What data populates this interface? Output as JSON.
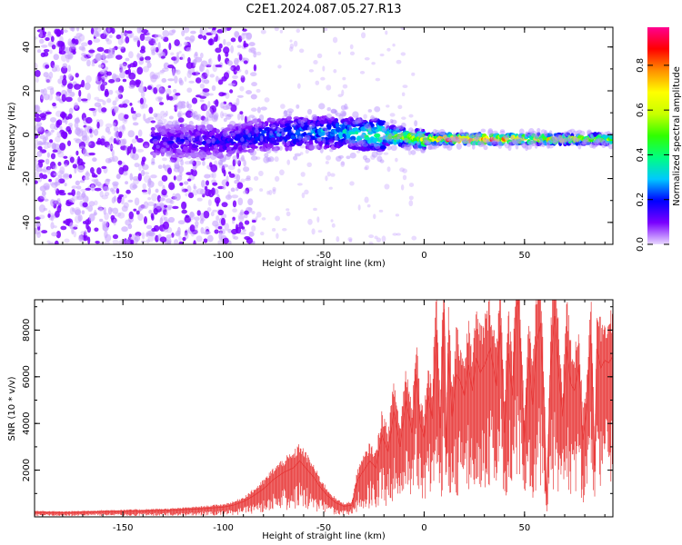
{
  "figure": {
    "title": "C2E1.2024.087.05.27.R13"
  },
  "chart_data": [
    {
      "type": "heatmap",
      "xlabel": "Height of straight line (km)",
      "ylabel": "Frequency (Hz)",
      "xlim": [
        -194,
        94
      ],
      "ylim": [
        -50,
        49
      ],
      "xticks": [
        -150,
        -100,
        -50,
        0,
        50
      ],
      "yticks": [
        -40,
        -20,
        0,
        20,
        40
      ],
      "colorbar": {
        "label": "Normalized spectral amplitude",
        "range": [
          0,
          0.97
        ],
        "ticks": [
          0.0,
          0.2,
          0.4,
          0.6,
          0.8
        ],
        "colormap": [
          "#e8d8ff",
          "#7a00ff",
          "#0000ff",
          "#00c8ff",
          "#00ff80",
          "#30ff00",
          "#c8ff00",
          "#ffff00",
          "#ff9000",
          "#ff0000",
          "#ff0090"
        ]
      },
      "ridge": [
        {
          "x": -130,
          "f": -3,
          "amp": 0.15
        },
        {
          "x": -100,
          "f": -3,
          "amp": 0.18
        },
        {
          "x": -80,
          "f": 0,
          "amp": 0.22
        },
        {
          "x": -60,
          "f": 1,
          "amp": 0.28
        },
        {
          "x": -40,
          "f": 1,
          "amp": 0.32
        },
        {
          "x": -25,
          "f": 0,
          "amp": 0.45
        },
        {
          "x": -10,
          "f": -1,
          "amp": 0.55
        },
        {
          "x": 0,
          "f": -2,
          "amp": 0.6
        },
        {
          "x": 10,
          "f": -2,
          "amp": 0.85
        },
        {
          "x": 25,
          "f": -2,
          "amp": 0.9
        },
        {
          "x": 40,
          "f": -2,
          "amp": 0.75
        },
        {
          "x": 60,
          "f": -2,
          "amp": 0.65
        },
        {
          "x": 92,
          "f": -2,
          "amp": 0.55
        }
      ]
    },
    {
      "type": "line",
      "xlabel": "Height of straight line (km)",
      "ylabel": "SNR (10 * v/v)",
      "xlim": [
        -194,
        94
      ],
      "ylim": [
        0,
        9300
      ],
      "xticks": [
        -150,
        -100,
        -50,
        0,
        50
      ],
      "yticks": [
        2000,
        4000,
        6000,
        8000
      ],
      "color": "#e83a3a",
      "series": [
        {
          "x": [
            -194,
            -180,
            -160,
            -140,
            -125,
            -110,
            -100,
            -95,
            -90,
            -85,
            -80,
            -75,
            -70,
            -65,
            -62,
            -58,
            -55,
            -52,
            -48,
            -44,
            -40,
            -36,
            -33,
            -30,
            -27,
            -24,
            -21,
            -18,
            -15,
            -12,
            -9,
            -6,
            -4,
            -2,
            0,
            2,
            4,
            6,
            8,
            10,
            11,
            12,
            14,
            16,
            18,
            20,
            22,
            24,
            26,
            28,
            30,
            33,
            36,
            38,
            40,
            42,
            44,
            46,
            47,
            48,
            50,
            52,
            54,
            56,
            58,
            60,
            61,
            63,
            65,
            67,
            69,
            71,
            73,
            75,
            77,
            79,
            81,
            83,
            85,
            86,
            88,
            90,
            92,
            94
          ],
          "y": [
            200,
            180,
            220,
            250,
            280,
            350,
            420,
            500,
            650,
            900,
            1200,
            1600,
            1900,
            2100,
            2400,
            2000,
            1700,
            1300,
            900,
            600,
            450,
            500,
            1600,
            2000,
            2400,
            2100,
            3500,
            2800,
            4500,
            3000,
            5000,
            3600,
            6100,
            4000,
            3400,
            5200,
            4200,
            7800,
            3800,
            8900,
            2600,
            7000,
            4300,
            6100,
            5800,
            5200,
            6500,
            5400,
            6800,
            6200,
            6500,
            7200,
            5600,
            8200,
            3600,
            7000,
            5200,
            9000,
            9300,
            7000,
            3200,
            6800,
            4800,
            7400,
            8300,
            4000,
            500,
            6400,
            8600,
            6100,
            4300,
            7300,
            5700,
            5400,
            6500,
            3300,
            4600,
            7800,
            2200,
            7200,
            6400,
            6700,
            6600,
            6900
          ]
        }
      ]
    }
  ]
}
